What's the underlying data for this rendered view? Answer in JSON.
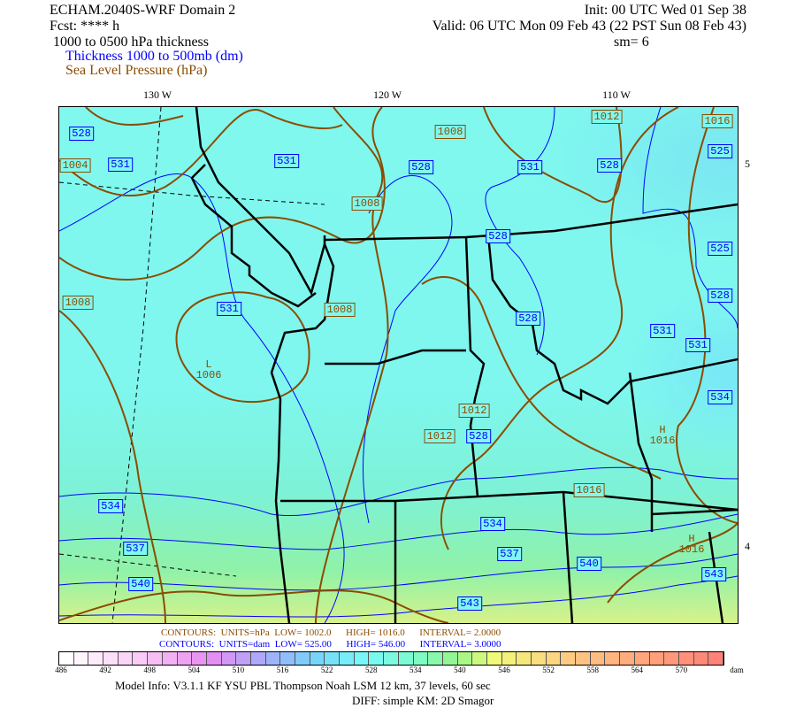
{
  "header": {
    "title": "ECHAM.2040S-WRF Domain 2",
    "fcst": "Fcst: **** h",
    "init": "Init: 00 UTC Wed 01 Sep 38",
    "valid": "Valid: 06 UTC Mon 09 Feb 43 (22 PST Sun 08 Feb 43)",
    "field": "1000 to 0500 hPa thickness",
    "smoothing": "sm= 6",
    "legend_thickness": "Thickness 1000 to 500mb (dm)",
    "legend_slp": "Sea Level Pressure (hPa)"
  },
  "colors": {
    "thickness": "#0000ff",
    "slp": "#8b4c00",
    "borders": "#000000"
  },
  "map": {
    "lon_labels": [
      "130 W",
      "120 W",
      "110 W"
    ],
    "lat_labels": [
      "5",
      "4"
    ],
    "thickness_labels": [
      "528",
      "531",
      "531",
      "528",
      "531",
      "528",
      "525",
      "528",
      "525",
      "528",
      "531",
      "528",
      "531",
      "531",
      "534",
      "528",
      "534",
      "537",
      "534",
      "537",
      "540",
      "540",
      "543",
      "543"
    ],
    "slp_labels": [
      "1004",
      "1008",
      "1012",
      "1016",
      "1008",
      "1008",
      "1008",
      "1006",
      "1012",
      "1012",
      "1016",
      "1016",
      "1016"
    ],
    "low_marker": "L",
    "high_marker": "H"
  },
  "contour_info": {
    "slp": {
      "label": "CONTOURS:",
      "units": "UNITS=hPa",
      "low": "LOW=  1002.0",
      "high": "HIGH=  1016.0",
      "interval": "INTERVAL=   2.0000"
    },
    "thk": {
      "label": "CONTOURS:",
      "units": "UNITS=dam",
      "low": "LOW=  525.00",
      "high": "HIGH=  546.00",
      "interval": "INTERVAL=   3.0000"
    }
  },
  "colorbar": {
    "ticks": [
      "486",
      "492",
      "498",
      "504",
      "510",
      "516",
      "522",
      "528",
      "534",
      "540",
      "546",
      "552",
      "558",
      "564",
      "570"
    ],
    "unit": "dam",
    "min": 486,
    "max": 576,
    "step": 2
  },
  "footer": {
    "model_info": "Model Info: V3.1.1    KF      YSU PBL   Thompson    Noah LSM   12 km,    37 levels,    60 sec",
    "diff": "DIFF: simple KM: 2D Smagor"
  }
}
